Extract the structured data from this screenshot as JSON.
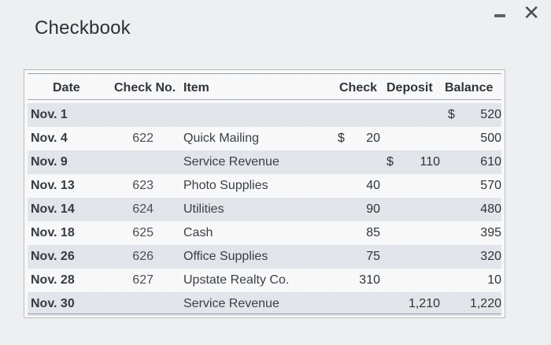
{
  "window": {
    "title": "Checkbook",
    "controls": [
      "minimize-icon",
      "close-icon"
    ],
    "close_glyph": "✕"
  },
  "table": {
    "headers": {
      "date": "Date",
      "check_no": "Check No.",
      "item": "Item",
      "check": "Check",
      "deposit": "Deposit",
      "balance": "Balance"
    },
    "rows": [
      {
        "date": "Nov. 1",
        "check_no": "",
        "item": "",
        "check_dollar": "",
        "check": "",
        "deposit_dollar": "",
        "deposit": "",
        "balance_dollar": "$",
        "balance": "520"
      },
      {
        "date": "Nov. 4",
        "check_no": "622",
        "item": "Quick Mailing",
        "check_dollar": "$",
        "check": "20",
        "deposit_dollar": "",
        "deposit": "",
        "balance_dollar": "",
        "balance": "500"
      },
      {
        "date": "Nov. 9",
        "check_no": "",
        "item": "Service Revenue",
        "check_dollar": "",
        "check": "",
        "deposit_dollar": "$",
        "deposit": "110",
        "balance_dollar": "",
        "balance": "610"
      },
      {
        "date": "Nov. 13",
        "check_no": "623",
        "item": "Photo Supplies",
        "check_dollar": "",
        "check": "40",
        "deposit_dollar": "",
        "deposit": "",
        "balance_dollar": "",
        "balance": "570"
      },
      {
        "date": "Nov. 14",
        "check_no": "624",
        "item": "Utilities",
        "check_dollar": "",
        "check": "90",
        "deposit_dollar": "",
        "deposit": "",
        "balance_dollar": "",
        "balance": "480"
      },
      {
        "date": "Nov. 18",
        "check_no": "625",
        "item": "Cash",
        "check_dollar": "",
        "check": "85",
        "deposit_dollar": "",
        "deposit": "",
        "balance_dollar": "",
        "balance": "395"
      },
      {
        "date": "Nov. 26",
        "check_no": "626",
        "item": "Office Supplies",
        "check_dollar": "",
        "check": "75",
        "deposit_dollar": "",
        "deposit": "",
        "balance_dollar": "",
        "balance": "320"
      },
      {
        "date": "Nov. 28",
        "check_no": "627",
        "item": "Upstate Realty Co.",
        "check_dollar": "",
        "check": "310",
        "deposit_dollar": "",
        "deposit": "",
        "balance_dollar": "",
        "balance": "10"
      },
      {
        "date": "Nov. 30",
        "check_no": "",
        "item": "Service Revenue",
        "check_dollar": "",
        "check": "",
        "deposit_dollar": "",
        "deposit": "1,210",
        "balance_dollar": "",
        "balance": "1,220"
      }
    ]
  }
}
